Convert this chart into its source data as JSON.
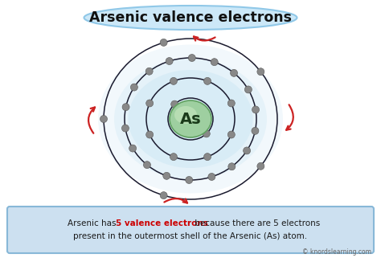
{
  "title": "Arsenic valence electrons",
  "bg_color": "#ffffff",
  "title_bg": "#cce8f8",
  "title_border": "#90c8e8",
  "atom_label": "As",
  "nucleus_color_outer": "#9ecfa0",
  "nucleus_color_inner": "#c8e8c0",
  "orbit_color": "#1a1a2e",
  "electron_color": "#888888",
  "electron_edge": "#555555",
  "glow_color": "#b8ddf0",
  "shell_electrons": [
    2,
    8,
    18,
    5
  ],
  "shell_r": [
    0.055,
    0.105,
    0.155,
    0.205
  ],
  "arrow_color": "#cc2222",
  "text_line2": "present in the outermost shell of the Arsenic (As) atom.",
  "text_box_bg": "#cce0f0",
  "text_box_border": "#88b8d8",
  "watermark": "© knordslearning.com"
}
